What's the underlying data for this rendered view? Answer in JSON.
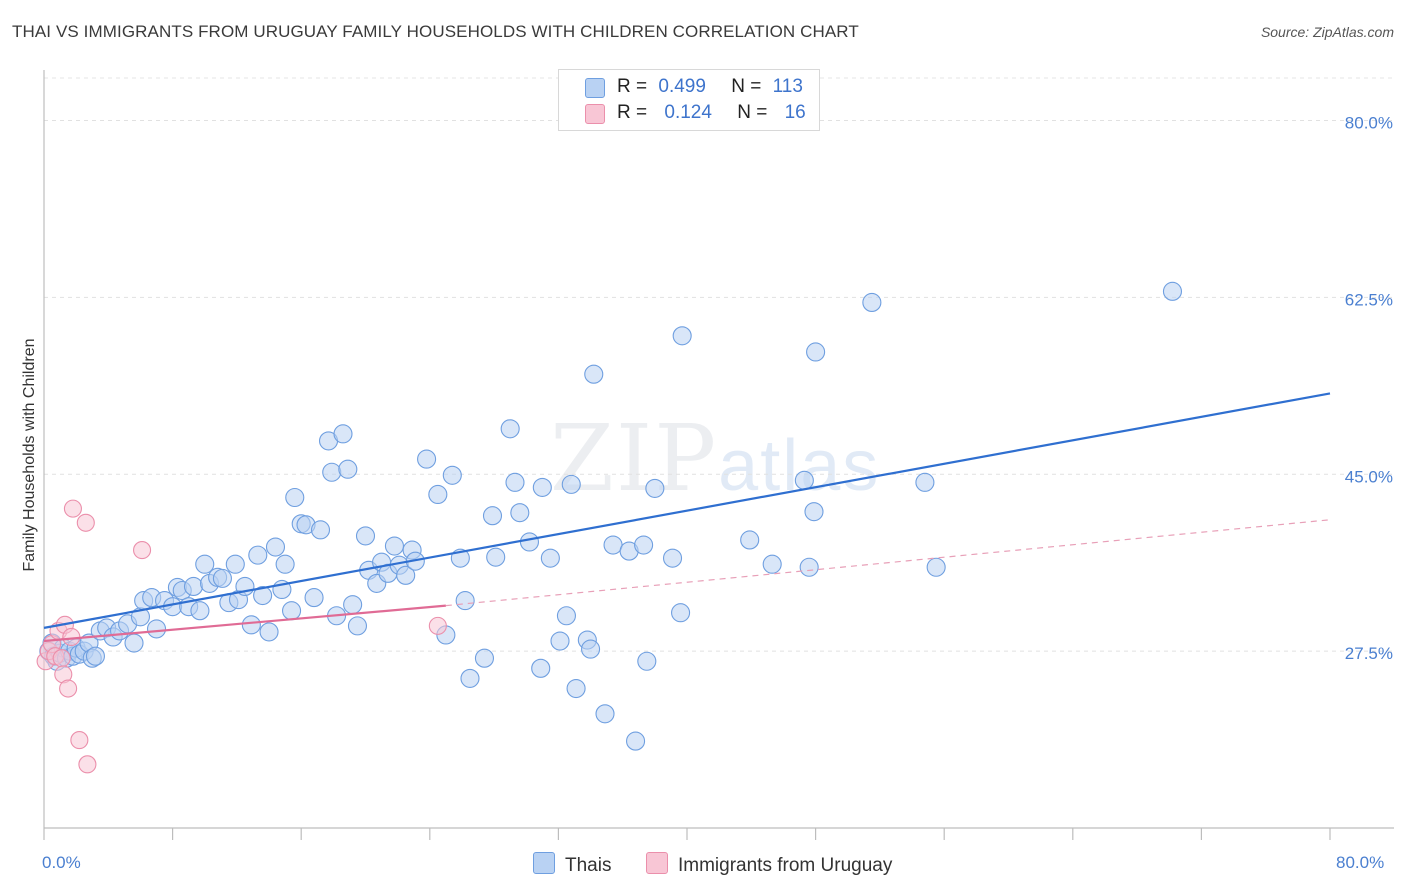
{
  "title": "THAI VS IMMIGRANTS FROM URUGUAY FAMILY HOUSEHOLDS WITH CHILDREN CORRELATION CHART",
  "source": "Source: ZipAtlas.com",
  "watermark": {
    "zip": "ZIP",
    "atlas": "atlas"
  },
  "legend": {
    "rows": [
      {
        "r_label": "R =",
        "r_value": "0.499",
        "n_label": "N =",
        "n_value": "113",
        "color": "#a9c8f0"
      },
      {
        "r_label": "R =",
        "r_value": "0.124",
        "n_label": "N =",
        "n_value": "16",
        "color": "#f7b8cb"
      }
    ]
  },
  "bottom_legend": {
    "series1": "Thais",
    "series2": "Immigrants from Uruguay"
  },
  "x_axis": {
    "min_label": "0.0%",
    "max_label": "80.0%"
  },
  "chart_data": {
    "type": "scatter",
    "title": "THAI VS IMMIGRANTS FROM URUGUAY FAMILY HOUSEHOLDS WITH CHILDREN CORRELATION CHART",
    "xlabel": "",
    "ylabel": "Family Households with Children",
    "xlim": [
      0,
      80
    ],
    "ylim": [
      10,
      85
    ],
    "y_ticks": [
      27.5,
      45.0,
      62.5,
      80.0
    ],
    "y_tick_labels": [
      "27.5%",
      "45.0%",
      "62.5%",
      "80.0%"
    ],
    "x_tick_labels": [
      "0.0%",
      "80.0%"
    ],
    "grid": true,
    "series": [
      {
        "name": "Thais",
        "color": "#6f9fe0",
        "fill": "#b9d2f3",
        "r": 0.499,
        "n": 113,
        "trend": {
          "x": [
            0,
            80
          ],
          "y": [
            29.8,
            53.0
          ],
          "style": "solid"
        },
        "points": [
          [
            0.3,
            27.5
          ],
          [
            0.5,
            28.3
          ],
          [
            0.6,
            27.0
          ],
          [
            0.8,
            26.5
          ],
          [
            1.0,
            27.3
          ],
          [
            1.2,
            27.8
          ],
          [
            1.4,
            26.8
          ],
          [
            1.6,
            27.5
          ],
          [
            1.8,
            27.0
          ],
          [
            2.0,
            27.8
          ],
          [
            2.2,
            27.2
          ],
          [
            2.5,
            27.5
          ],
          [
            2.8,
            28.3
          ],
          [
            3.0,
            26.8
          ],
          [
            3.2,
            27.0
          ],
          [
            3.5,
            29.5
          ],
          [
            3.9,
            29.8
          ],
          [
            4.3,
            28.9
          ],
          [
            4.7,
            29.5
          ],
          [
            5.2,
            30.2
          ],
          [
            5.6,
            28.3
          ],
          [
            6.0,
            30.9
          ],
          [
            6.2,
            32.5
          ],
          [
            6.7,
            32.8
          ],
          [
            7.0,
            29.7
          ],
          [
            7.5,
            32.5
          ],
          [
            8.0,
            31.9
          ],
          [
            8.3,
            33.8
          ],
          [
            8.6,
            33.5
          ],
          [
            9.0,
            31.9
          ],
          [
            9.3,
            33.9
          ],
          [
            9.7,
            31.5
          ],
          [
            10.0,
            36.1
          ],
          [
            10.3,
            34.2
          ],
          [
            10.8,
            34.8
          ],
          [
            11.1,
            34.7
          ],
          [
            11.5,
            32.3
          ],
          [
            11.9,
            36.1
          ],
          [
            12.1,
            32.6
          ],
          [
            12.5,
            33.9
          ],
          [
            12.9,
            30.1
          ],
          [
            13.3,
            37.0
          ],
          [
            13.6,
            33.0
          ],
          [
            14.0,
            29.4
          ],
          [
            14.4,
            37.8
          ],
          [
            14.8,
            33.6
          ],
          [
            15.0,
            36.1
          ],
          [
            15.4,
            31.5
          ],
          [
            15.6,
            42.7
          ],
          [
            16.0,
            40.1
          ],
          [
            16.3,
            40.0
          ],
          [
            16.8,
            32.8
          ],
          [
            17.2,
            39.5
          ],
          [
            17.7,
            48.3
          ],
          [
            17.9,
            45.2
          ],
          [
            18.2,
            31.0
          ],
          [
            18.6,
            49.0
          ],
          [
            18.9,
            45.5
          ],
          [
            19.2,
            32.1
          ],
          [
            19.5,
            30.0
          ],
          [
            20.0,
            38.9
          ],
          [
            20.2,
            35.5
          ],
          [
            20.7,
            34.2
          ],
          [
            21.0,
            36.3
          ],
          [
            21.4,
            35.2
          ],
          [
            21.8,
            37.9
          ],
          [
            22.1,
            36.0
          ],
          [
            22.5,
            35.0
          ],
          [
            22.9,
            37.5
          ],
          [
            23.1,
            36.4
          ],
          [
            23.8,
            46.5
          ],
          [
            24.5,
            43.0
          ],
          [
            25.0,
            29.1
          ],
          [
            25.4,
            44.9
          ],
          [
            25.9,
            36.7
          ],
          [
            26.2,
            32.5
          ],
          [
            26.5,
            24.8
          ],
          [
            27.4,
            26.8
          ],
          [
            27.9,
            40.9
          ],
          [
            28.1,
            36.8
          ],
          [
            29.0,
            49.5
          ],
          [
            29.3,
            44.2
          ],
          [
            29.6,
            41.2
          ],
          [
            30.2,
            38.3
          ],
          [
            30.9,
            25.8
          ],
          [
            31.0,
            43.7
          ],
          [
            31.5,
            36.7
          ],
          [
            32.1,
            28.5
          ],
          [
            32.5,
            31.0
          ],
          [
            32.8,
            44.0
          ],
          [
            33.1,
            23.8
          ],
          [
            33.8,
            28.6
          ],
          [
            34.0,
            27.7
          ],
          [
            34.2,
            54.9
          ],
          [
            34.9,
            21.3
          ],
          [
            35.4,
            38.0
          ],
          [
            36.4,
            37.4
          ],
          [
            36.8,
            18.6
          ],
          [
            37.3,
            38.0
          ],
          [
            37.5,
            26.5
          ],
          [
            38.0,
            43.6
          ],
          [
            39.1,
            36.7
          ],
          [
            39.6,
            31.3
          ],
          [
            39.7,
            58.7
          ],
          [
            43.9,
            38.5
          ],
          [
            45.3,
            36.1
          ],
          [
            47.3,
            44.4
          ],
          [
            47.6,
            35.8
          ],
          [
            47.9,
            41.3
          ],
          [
            48.0,
            57.1
          ],
          [
            51.5,
            62.0
          ],
          [
            54.8,
            44.2
          ],
          [
            55.5,
            35.8
          ],
          [
            70.2,
            63.1
          ]
        ]
      },
      {
        "name": "Immigrants from Uruguay",
        "color": "#eb8fab",
        "fill": "#f8c6d5",
        "r": 0.124,
        "n": 16,
        "trend": {
          "x": [
            0,
            25
          ],
          "y": [
            28.5,
            32.0
          ],
          "style": "solid",
          "extended": {
            "x": [
              25,
              80
            ],
            "y": [
              32.0,
              40.5
            ],
            "style": "dashed"
          }
        },
        "points": [
          [
            0.1,
            26.5
          ],
          [
            0.3,
            27.5
          ],
          [
            0.5,
            28.2
          ],
          [
            0.7,
            27.0
          ],
          [
            0.9,
            29.5
          ],
          [
            1.1,
            26.8
          ],
          [
            1.2,
            25.2
          ],
          [
            1.3,
            30.1
          ],
          [
            1.5,
            23.8
          ],
          [
            1.7,
            28.9
          ],
          [
            1.8,
            41.6
          ],
          [
            2.2,
            18.7
          ],
          [
            2.6,
            40.2
          ],
          [
            2.7,
            16.3
          ],
          [
            6.1,
            37.5
          ],
          [
            24.5,
            30.0
          ]
        ]
      }
    ]
  }
}
